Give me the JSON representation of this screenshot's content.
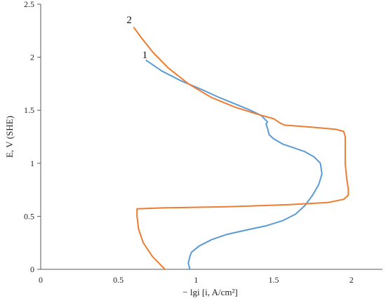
{
  "chart_data": {
    "type": "line",
    "title": "",
    "xlabel": "− lgi [i, A/cm²]",
    "ylabel": "E, V (SHE)",
    "xlim": [
      0,
      2.2
    ],
    "ylim": [
      0,
      2.5
    ],
    "xticks": [
      0,
      0.5,
      1,
      1.5,
      2
    ],
    "yticks": [
      0,
      0.5,
      1,
      1.5,
      2,
      2.5
    ],
    "x_tick_labels": [
      "0",
      "0.5",
      "1",
      "1.5",
      "2"
    ],
    "y_tick_labels": [
      "0",
      "0.5",
      "1",
      "1.5",
      "2",
      "2.5"
    ],
    "grid": false,
    "legend": "none",
    "series": [
      {
        "name": "1",
        "color": "#5B9BD5",
        "label_at": [
          0.67,
          1.99
        ],
        "points": [
          [
            0.96,
            0.0
          ],
          [
            0.95,
            0.06
          ],
          [
            0.96,
            0.12
          ],
          [
            0.97,
            0.16
          ],
          [
            1.02,
            0.22
          ],
          [
            1.1,
            0.28
          ],
          [
            1.2,
            0.33
          ],
          [
            1.32,
            0.37
          ],
          [
            1.45,
            0.41
          ],
          [
            1.56,
            0.46
          ],
          [
            1.64,
            0.52
          ],
          [
            1.7,
            0.6
          ],
          [
            1.75,
            0.7
          ],
          [
            1.79,
            0.8
          ],
          [
            1.81,
            0.9
          ],
          [
            1.8,
            1.0
          ],
          [
            1.76,
            1.06
          ],
          [
            1.7,
            1.11
          ],
          [
            1.62,
            1.15
          ],
          [
            1.56,
            1.18
          ],
          [
            1.5,
            1.23
          ],
          [
            1.47,
            1.27
          ],
          [
            1.46,
            1.33
          ],
          [
            1.45,
            1.37
          ],
          [
            1.46,
            1.39
          ],
          [
            1.42,
            1.45
          ],
          [
            1.35,
            1.5
          ],
          [
            1.25,
            1.56
          ],
          [
            1.15,
            1.62
          ],
          [
            1.03,
            1.7
          ],
          [
            0.9,
            1.78
          ],
          [
            0.78,
            1.87
          ],
          [
            0.7,
            1.95
          ],
          [
            0.68,
            1.97
          ]
        ]
      },
      {
        "name": "2",
        "color": "#ED7D31",
        "label_at": [
          0.57,
          2.32
        ],
        "points": [
          [
            0.8,
            0.0
          ],
          [
            0.72,
            0.12
          ],
          [
            0.66,
            0.25
          ],
          [
            0.63,
            0.38
          ],
          [
            0.62,
            0.5
          ],
          [
            0.62,
            0.57
          ],
          [
            0.8,
            0.58
          ],
          [
            1.2,
            0.59
          ],
          [
            1.6,
            0.61
          ],
          [
            1.85,
            0.63
          ],
          [
            1.95,
            0.66
          ],
          [
            1.98,
            0.7
          ],
          [
            1.98,
            0.76
          ],
          [
            1.97,
            0.85
          ],
          [
            1.96,
            1.0
          ],
          [
            1.96,
            1.15
          ],
          [
            1.96,
            1.25
          ],
          [
            1.95,
            1.3
          ],
          [
            1.9,
            1.32
          ],
          [
            1.75,
            1.34
          ],
          [
            1.57,
            1.36
          ],
          [
            1.54,
            1.38
          ],
          [
            1.5,
            1.42
          ],
          [
            1.4,
            1.46
          ],
          [
            1.25,
            1.53
          ],
          [
            1.1,
            1.62
          ],
          [
            0.95,
            1.75
          ],
          [
            0.82,
            1.9
          ],
          [
            0.72,
            2.05
          ],
          [
            0.65,
            2.18
          ],
          [
            0.6,
            2.28
          ]
        ]
      }
    ]
  }
}
